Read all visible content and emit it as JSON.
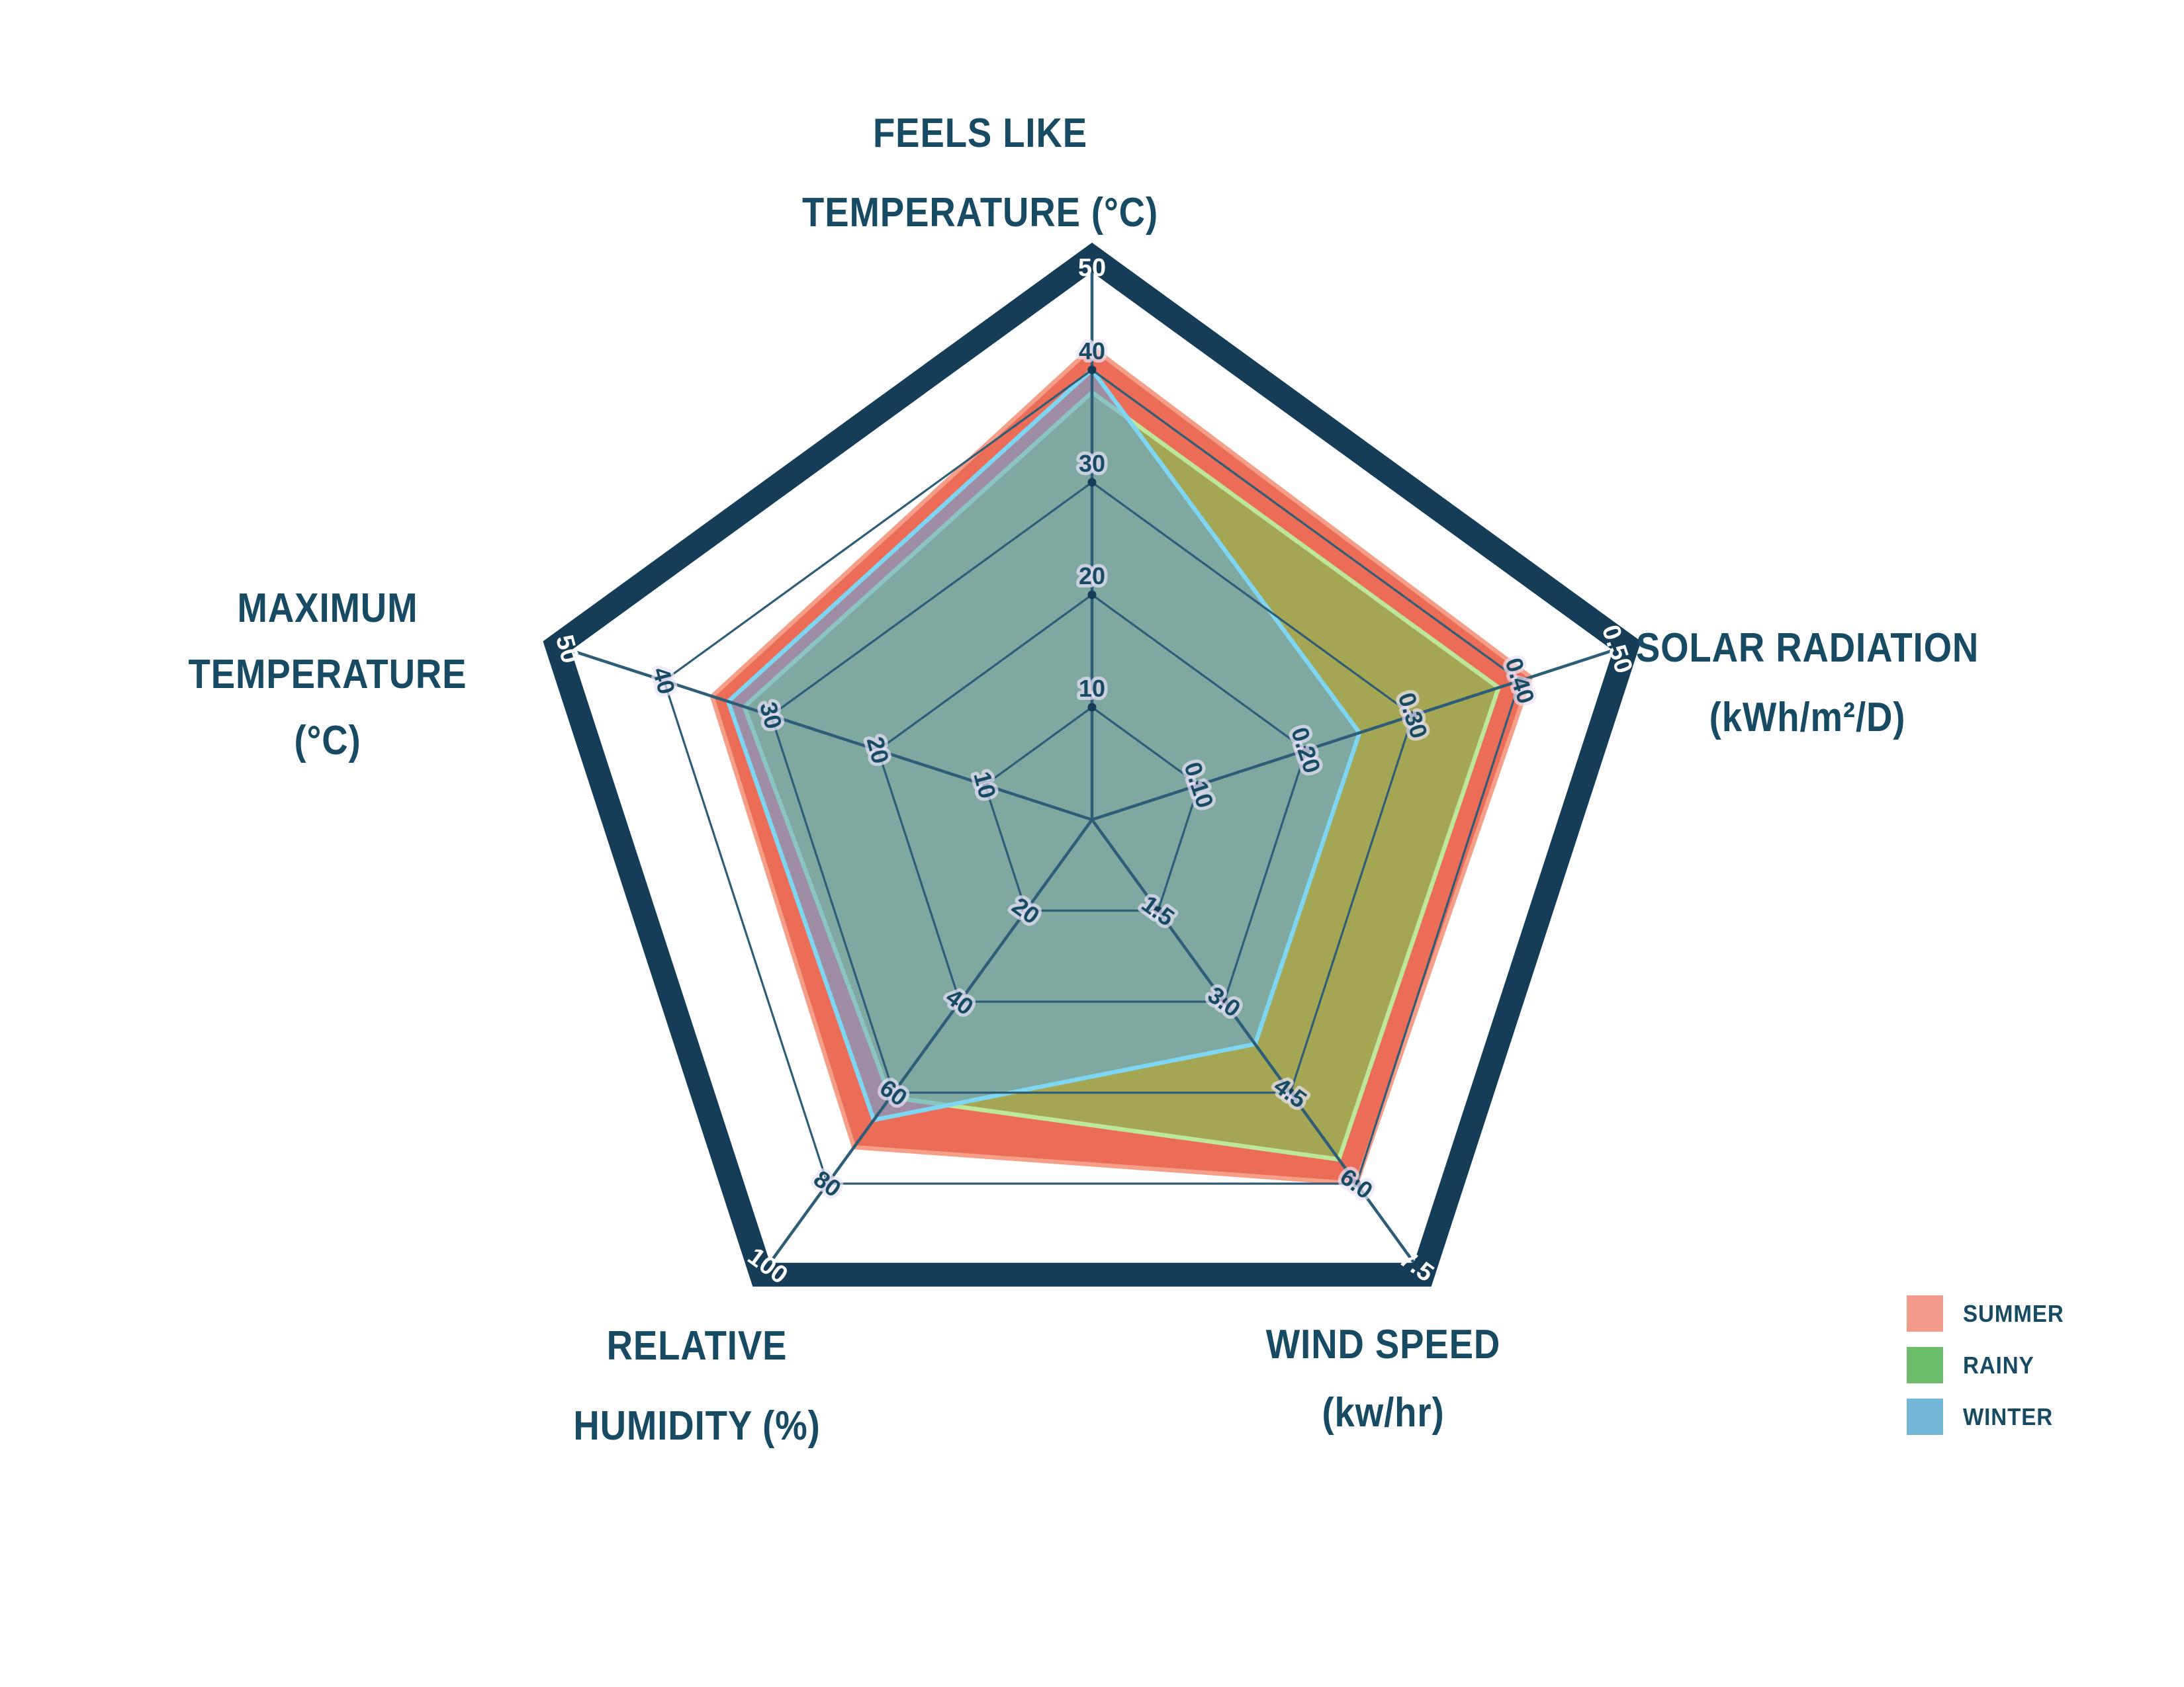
{
  "figure": {
    "background": "#ffffff",
    "text_color": "#174a63"
  },
  "chart_data": {
    "type": "radar",
    "grid_shape": "pentagon",
    "grid_levels": 5,
    "grid_on": true,
    "grid_color": "#2e5d77",
    "outer_ring_color": "#153d57",
    "text_color": "#174a63",
    "legend_position": "bottom-right",
    "axes": [
      {
        "id": "feels_like",
        "title_lines": [
          "FEELS LIKE",
          "TEMPERATURE (°C)"
        ],
        "angle_deg": 90,
        "min": 0,
        "max": 50,
        "tick_step": 10,
        "tick_labels": [
          "10",
          "20",
          "30",
          "40"
        ],
        "outer_label": "50",
        "label_rotation": 0
      },
      {
        "id": "solar_radiation",
        "title_lines": [
          "SOLAR RADIATION",
          "(kWh/m²/D)"
        ],
        "angle_deg": 18,
        "min": 0,
        "max": 0.5,
        "tick_step": 0.1,
        "tick_labels": [
          "0.10",
          "0.20",
          "0.30",
          "0.40"
        ],
        "outer_label": "0.50",
        "label_rotation": 72
      },
      {
        "id": "wind_speed",
        "title_lines": [
          "WIND SPEED",
          "(kw/hr)"
        ],
        "angle_deg": -54,
        "min": 0,
        "max": 7.5,
        "tick_step": 1.5,
        "tick_labels": [
          "1.5",
          "3.0",
          "4.5",
          "6.0"
        ],
        "outer_label": "7.5",
        "label_rotation": 36
      },
      {
        "id": "relative_humidity",
        "title_lines": [
          "RELATIVE",
          "HUMIDITY (%)"
        ],
        "angle_deg": 234,
        "min": 0,
        "max": 100,
        "tick_step": 20,
        "tick_labels": [
          "20",
          "40",
          "60",
          "80"
        ],
        "outer_label": "100",
        "label_rotation": 36
      },
      {
        "id": "maximum_temperature",
        "title_lines": [
          "MAXIMUM",
          "TEMPERATURE",
          "(°C)"
        ],
        "angle_deg": 162,
        "min": 0,
        "max": 50,
        "tick_step": 10,
        "tick_labels": [
          "10",
          "20",
          "30",
          "40"
        ],
        "outer_label": "50",
        "label_rotation": 75
      }
    ],
    "series": [
      {
        "name": "SUMMER",
        "legend_color": "#f29b8b",
        "fill": "rgba(232,82,58,0.85)",
        "stroke": "#f59e88",
        "values": {
          "feels_like": 42,
          "solar_radiation": 0.41,
          "wind_speed": 6.0,
          "relative_humidity": 72,
          "maximum_temperature": 35.5
        }
      },
      {
        "name": "RAINY",
        "legend_color": "#6cbe6c",
        "fill": "rgba(118,205,80,0.6)",
        "stroke": "#bde79b",
        "values": {
          "feels_like": 38,
          "solar_radiation": 0.38,
          "wind_speed": 5.6,
          "relative_humidity": 61,
          "maximum_temperature": 32.5
        }
      },
      {
        "name": "WINTER",
        "legend_color": "#74b7d6",
        "fill": "rgba(96,170,225,0.55)",
        "stroke": "#7fd6f2",
        "values": {
          "feels_like": 40,
          "solar_radiation": 0.25,
          "wind_speed": 3.7,
          "relative_humidity": 66,
          "maximum_temperature": 34
        }
      }
    ]
  }
}
